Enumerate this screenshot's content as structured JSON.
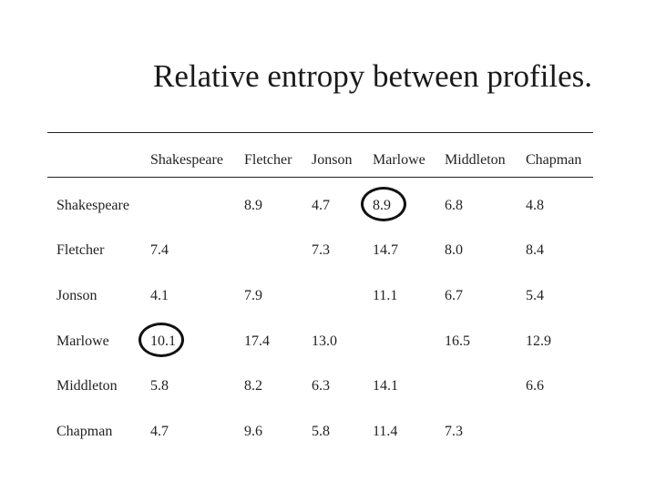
{
  "title": "Relative entropy between profiles.",
  "table": {
    "columns": [
      "Shakespeare",
      "Fletcher",
      "Jonson",
      "Marlowe",
      "Middleton",
      "Chapman"
    ],
    "rows": [
      {
        "label": "Shakespeare",
        "values": [
          "",
          "8.9",
          "4.7",
          "8.9",
          "6.8",
          "4.8"
        ]
      },
      {
        "label": "Fletcher",
        "values": [
          "7.4",
          "",
          "7.3",
          "14.7",
          "8.0",
          "8.4"
        ]
      },
      {
        "label": "Jonson",
        "values": [
          "4.1",
          "7.9",
          "",
          "11.1",
          "6.7",
          "5.4"
        ]
      },
      {
        "label": "Marlowe",
        "values": [
          "10.1",
          "17.4",
          "13.0",
          "",
          "16.5",
          "12.9"
        ]
      },
      {
        "label": "Middleton",
        "values": [
          "5.8",
          "8.2",
          "6.3",
          "14.1",
          "",
          "6.6"
        ]
      },
      {
        "label": "Chapman",
        "values": [
          "4.7",
          "9.6",
          "5.8",
          "11.4",
          "7.3",
          ""
        ]
      }
    ],
    "highlighted_cells": [
      {
        "row": "Shakespeare",
        "column": "Marlowe"
      },
      {
        "row": "Marlowe",
        "column": "Shakespeare"
      }
    ]
  }
}
